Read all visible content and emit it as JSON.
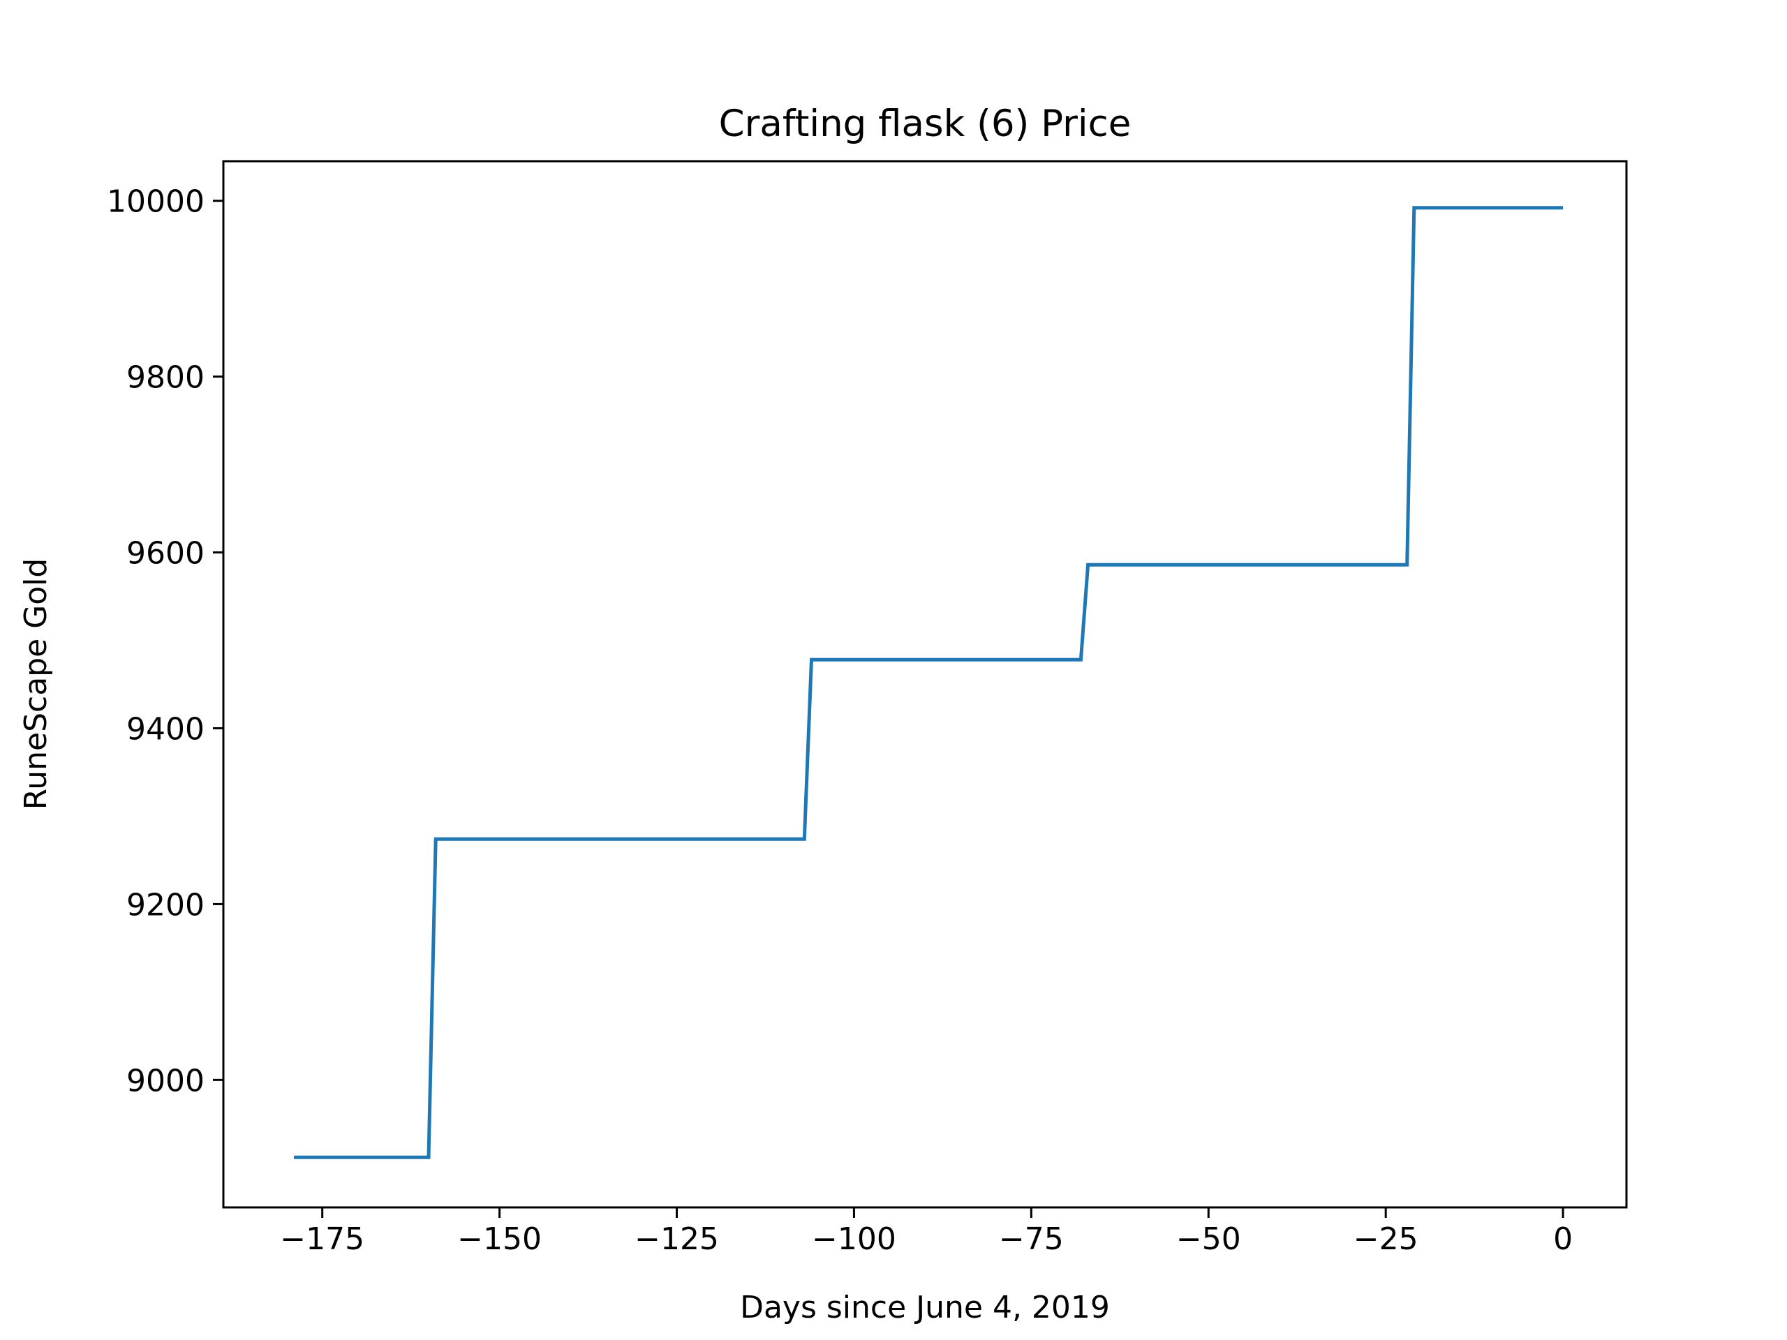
{
  "chart_data": {
    "type": "line",
    "title": "Crafting flask (6) Price",
    "xlabel": "Days since June 4, 2019",
    "ylabel": "RuneScape Gold",
    "xlim": [
      -188.95,
      8.95
    ],
    "ylim": [
      8855,
      10045
    ],
    "xticks": [
      -175,
      -150,
      -125,
      -100,
      -75,
      -50,
      -25,
      0
    ],
    "xtick_labels": [
      "−175",
      "−150",
      "−125",
      "−100",
      "−75",
      "−50",
      "−25",
      "0"
    ],
    "yticks": [
      9000,
      9200,
      9400,
      9600,
      9800,
      10000
    ],
    "ytick_labels": [
      "9000",
      "9200",
      "9400",
      "9600",
      "9800",
      "10000"
    ],
    "grid": false,
    "line_color": "#1f77b4",
    "series": [
      {
        "x": [
          -179,
          -160,
          -159,
          -107,
          -106,
          -68,
          -67,
          -22,
          -21,
          0
        ],
        "y": [
          8912,
          8912,
          9274,
          9274,
          9478,
          9478,
          9586,
          9586,
          9992,
          9992
        ]
      }
    ]
  }
}
